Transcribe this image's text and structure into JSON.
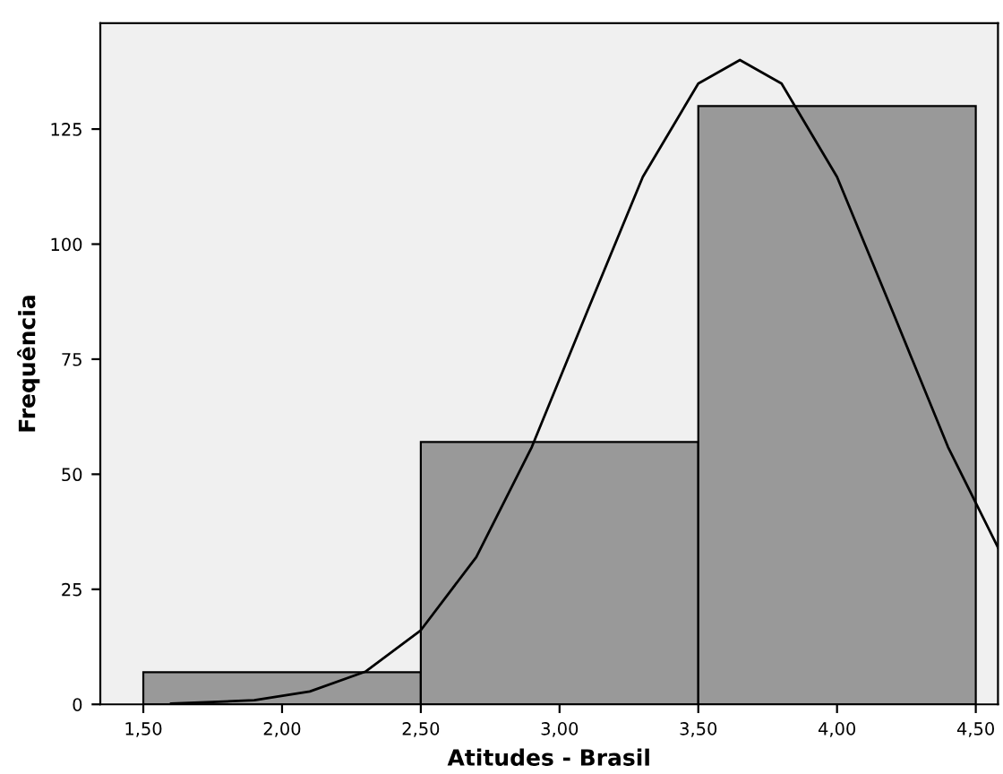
{
  "chart_data": {
    "type": "histogram",
    "xlabel": "Atitudes - Brasil",
    "ylabel": "Frequência",
    "bins": [
      1.5,
      2.5,
      3.5,
      4.5
    ],
    "values": [
      7,
      57,
      130
    ],
    "color": "#999999",
    "series": [
      {
        "type": "line",
        "color": "#000000",
        "x": [
          1.6,
          1.9,
          2.1,
          2.3,
          2.5,
          2.7,
          2.9,
          3.1,
          3.3,
          3.5,
          3.65,
          3.8,
          4.0,
          4.2,
          4.4,
          4.58
        ],
        "values": [
          0.15,
          0.9,
          2.8,
          7.1,
          16.1,
          32,
          55.9,
          85.4,
          114.6,
          134.9,
          140,
          134.9,
          114.6,
          85.4,
          55.9,
          34.1
        ]
      }
    ],
    "xlim": [
      1.345,
      4.58
    ],
    "ylim": [
      0,
      148
    ],
    "xticks": [
      {
        "value": 1.5,
        "label": "1,50"
      },
      {
        "value": 2.0,
        "label": "2,00"
      },
      {
        "value": 2.5,
        "label": "2,50"
      },
      {
        "value": 3.0,
        "label": "3,00"
      },
      {
        "value": 3.5,
        "label": "3,50"
      },
      {
        "value": 4.0,
        "label": "4,00"
      },
      {
        "value": 4.5,
        "label": "4,50"
      }
    ],
    "yticks": [
      0,
      25,
      50,
      75,
      100,
      125
    ],
    "grid": false,
    "legend": false
  }
}
